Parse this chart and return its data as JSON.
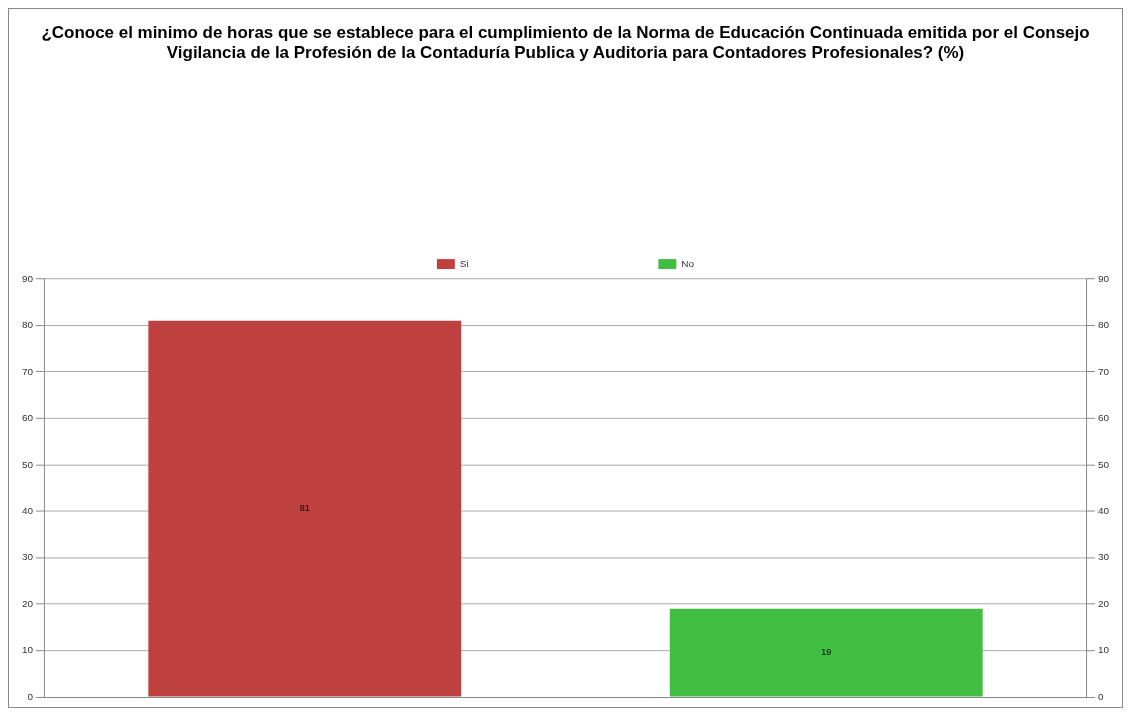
{
  "chart_data": {
    "type": "bar",
    "title": "¿Conoce el minimo de horas que se establece para el cumplimiento de la Norma de Educación Continuada emitida por el Consejo Vigilancia de la Profesión de la Contaduría Publica y Auditoria para Contadores Profesionales? (%)",
    "categories": [
      null,
      null
    ],
    "series": [
      {
        "name": "Si",
        "color": "#be4140",
        "values": [
          81,
          null
        ]
      },
      {
        "name": "No",
        "color": "#41bd41",
        "values": [
          null,
          19
        ]
      }
    ],
    "ylim": [
      0,
      90
    ],
    "yticks": [
      0,
      10,
      20,
      30,
      40,
      50,
      60,
      70,
      80,
      90
    ],
    "y2lim": [
      0,
      90
    ],
    "y2ticks": [
      0,
      10,
      20,
      30,
      40,
      50,
      60,
      70,
      80,
      90
    ],
    "grid": "y",
    "legend": "top",
    "data_labels": true
  }
}
